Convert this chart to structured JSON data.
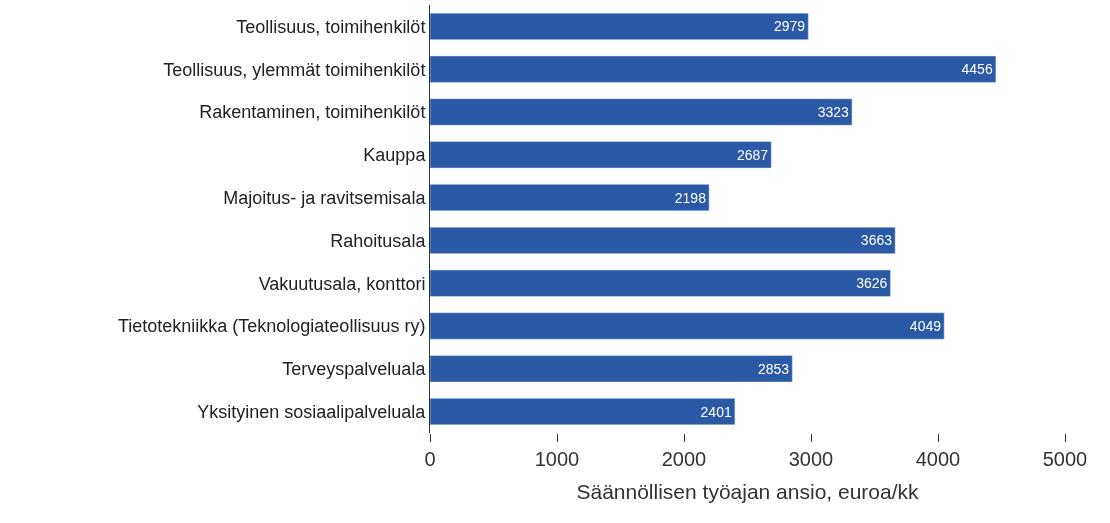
{
  "chart_data": {
    "type": "bar",
    "orientation": "horizontal",
    "xlabel": "Säännöllisen työajan ansio, euroa/kk",
    "categories": [
      "Teollisuus, toimihenkilöt",
      "Teollisuus, ylemmät toimihenkilöt",
      "Rakentaminen, toimihenkilöt",
      "Kauppa",
      "Majoitus- ja ravitsemisala",
      "Rahoitusala",
      "Vakuutusala, konttori",
      "Tietotekniikka (Teknologiateollisuus ry)",
      "Terveyspalveluala",
      "Yksityinen sosiaalipalveluala"
    ],
    "values": [
      2979,
      4456,
      3323,
      2687,
      2198,
      3663,
      3626,
      4049,
      2853,
      2401
    ],
    "color": "#2a5aa5",
    "data_labels": true,
    "xlim": [
      0,
      5000
    ],
    "xticks": [
      0,
      1000,
      2000,
      3000,
      4000,
      5000
    ],
    "legend": false
  }
}
